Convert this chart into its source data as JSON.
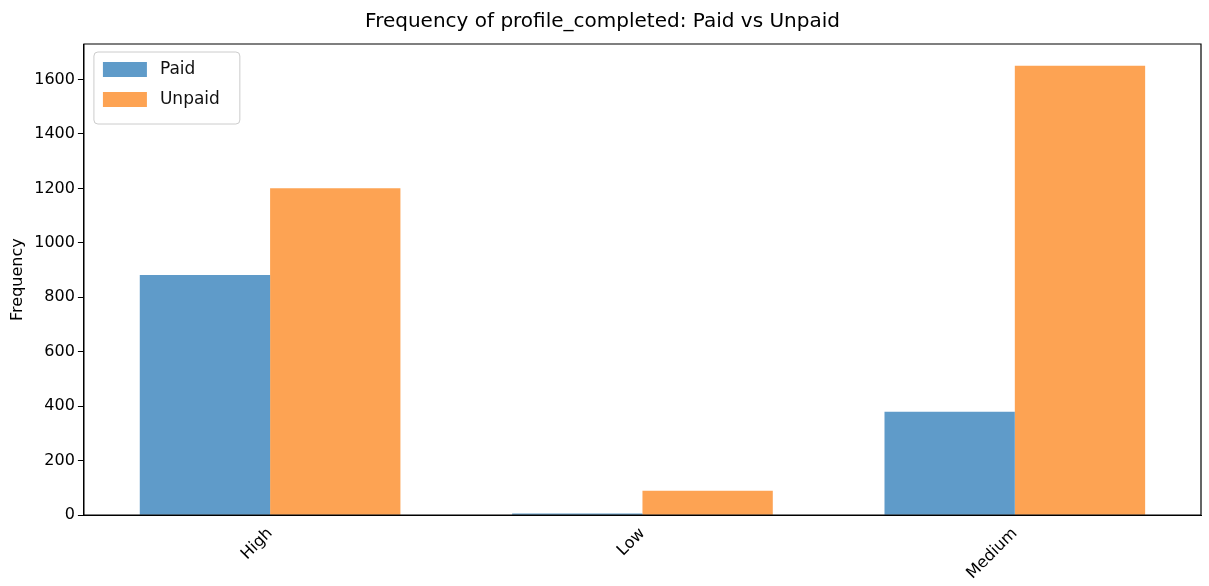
{
  "chart_data": {
    "type": "bar",
    "title": "Frequency of profile_completed: Paid vs Unpaid",
    "ylabel": "Frequency",
    "categories": [
      "High",
      "Low",
      "Medium"
    ],
    "series": [
      {
        "name": "Paid",
        "color": "#5f9bc9",
        "values": [
          882,
          6,
          380
        ]
      },
      {
        "name": "Unpaid",
        "color": "#fda353",
        "values": [
          1200,
          90,
          1650
        ]
      }
    ],
    "ylim": [
      0,
      1730
    ],
    "yticks": [
      0,
      200,
      400,
      600,
      800,
      1000,
      1200,
      1400,
      1600
    ],
    "grid": false,
    "legend": "top left"
  }
}
